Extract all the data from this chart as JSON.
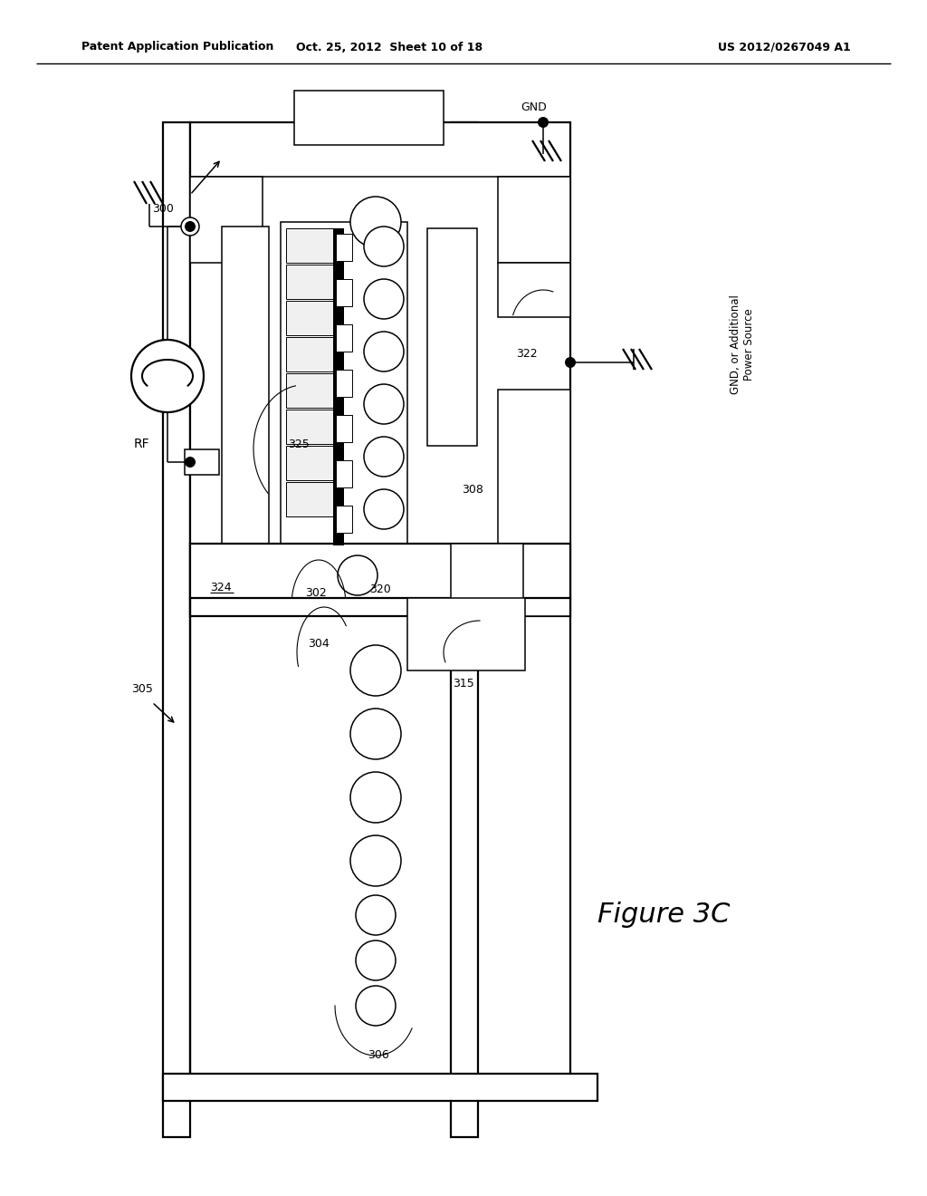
{
  "bg_color": "#ffffff",
  "header_left": "Patent Application Publication",
  "header_mid": "Oct. 25, 2012  Sheet 10 of 18",
  "header_right": "US 2012/0267049 A1",
  "figure_label": "Figure 3C"
}
